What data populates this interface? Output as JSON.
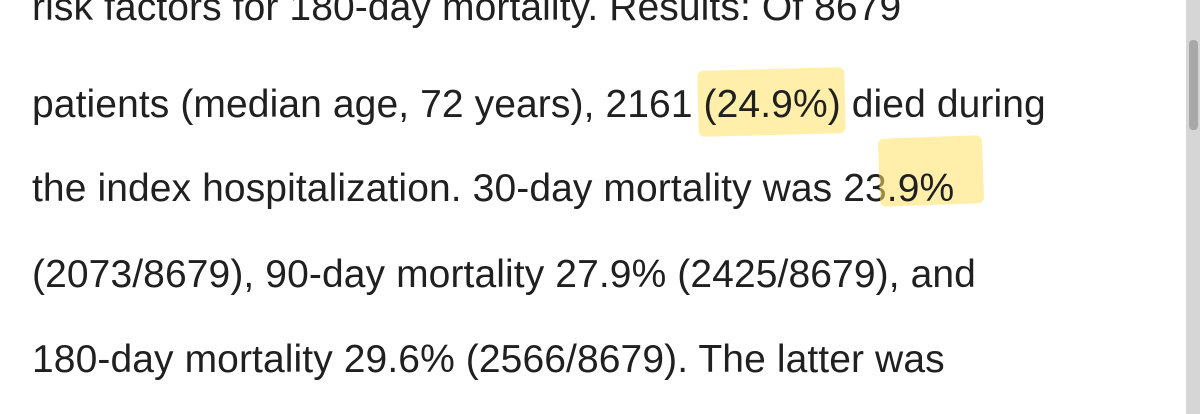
{
  "document": {
    "lines": [
      "risk factors for 180-day mortality. Results: Of 8679",
      "patients (median age, 72 years), 2161 ",
      "(24.9%)",
      " died during",
      "the index hospitalization. 30-day mortality was 23",
      ".9%",
      "(2073/8679), 90-day mortality 27.9% (2425/8679), and",
      "180-day mortality 29.6% (2566/8679). The latter was"
    ]
  },
  "highlight_color": "#ffe264"
}
